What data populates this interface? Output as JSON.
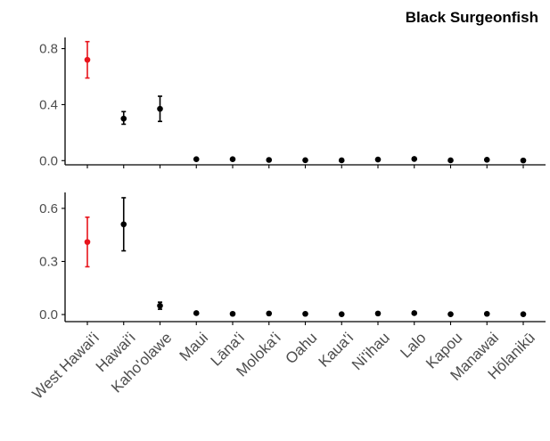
{
  "colors": {
    "highlight": "#e8141c",
    "default": "#000000",
    "axis": "#000000",
    "tick_label": "#4d4d4d"
  },
  "chart_data": {
    "type": "scatter",
    "title": "Black Surgeonfish",
    "grid": false,
    "legend": "none",
    "categories": [
      "West Hawai'i",
      "Hawai'i",
      "Kaho'olawe",
      "Maui",
      "Lāna'i",
      "Moloka'i",
      "Oahu",
      "Kaua'i",
      "Ni'ihau",
      "Lalo",
      "Kapou",
      "Manawai",
      "Hōlanikū"
    ],
    "highlight_categories": [
      "West Hawai'i"
    ],
    "panels": [
      {
        "ylim": [
          -0.03,
          0.88
        ],
        "yticks": [
          0.0,
          0.4,
          0.8
        ],
        "ytick_labels": [
          "0.0",
          "0.4",
          "0.8"
        ],
        "values": [
          0.72,
          0.3,
          0.37,
          0.01,
          0.01,
          0.005,
          0.003,
          0.002,
          0.008,
          0.012,
          0.002,
          0.006,
          0.001
        ],
        "err_low": [
          0.59,
          0.26,
          0.28,
          null,
          null,
          null,
          null,
          null,
          null,
          null,
          null,
          null,
          null
        ],
        "err_high": [
          0.85,
          0.35,
          0.46,
          null,
          null,
          null,
          null,
          null,
          null,
          null,
          null,
          null,
          null
        ]
      },
      {
        "ylim": [
          -0.04,
          0.69
        ],
        "yticks": [
          0.0,
          0.3,
          0.6
        ],
        "ytick_labels": [
          "0.0",
          "0.3",
          "0.6"
        ],
        "values": [
          0.41,
          0.51,
          0.05,
          0.008,
          0.004,
          0.006,
          0.004,
          0.002,
          0.006,
          0.008,
          0.002,
          0.004,
          0.002
        ],
        "err_low": [
          0.27,
          0.36,
          0.03,
          null,
          null,
          null,
          null,
          null,
          null,
          null,
          null,
          null,
          null
        ],
        "err_high": [
          0.55,
          0.66,
          0.07,
          null,
          null,
          null,
          null,
          null,
          null,
          null,
          null,
          null,
          null
        ]
      }
    ]
  }
}
